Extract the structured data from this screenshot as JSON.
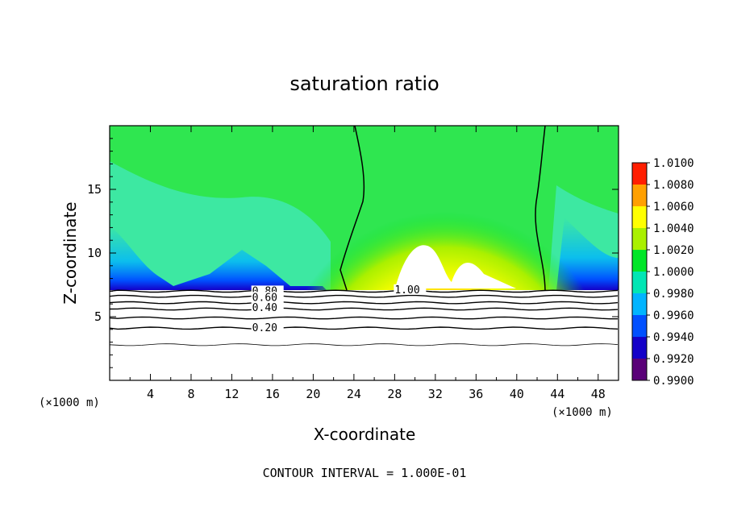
{
  "chart_data": {
    "type": "heatmap",
    "title": "saturation ratio",
    "xlabel": "X-coordinate",
    "ylabel": "Z-coordinate",
    "x_unit": "(×1000 m)",
    "x_unit_right": "(×1000 m)",
    "xlim": [
      0,
      50
    ],
    "ylim": [
      0,
      20
    ],
    "x_ticks": [
      4,
      8,
      12,
      16,
      20,
      24,
      28,
      32,
      36,
      40,
      44,
      48
    ],
    "y_ticks": [
      5,
      10,
      15
    ],
    "colorbar": {
      "min": 0.99,
      "max": 1.01,
      "levels": [
        "0.9900",
        "0.9920",
        "0.9940",
        "0.9960",
        "0.9980",
        "1.0000",
        "1.0020",
        "1.0040",
        "1.0060",
        "1.0080",
        "1.0100"
      ],
      "colors": [
        "#5a0078",
        "#1400c8",
        "#0050ff",
        "#00b4ff",
        "#00e6b4",
        "#00e628",
        "#aaf000",
        "#ffff00",
        "#ffa000",
        "#ff1e00",
        "#ff8c8c"
      ]
    },
    "contour_labels": [
      {
        "text": "0.80",
        "x": 14.0,
        "y": 7.0
      },
      {
        "text": "0.60",
        "x": 14.0,
        "y": 6.5
      },
      {
        "text": "0.40",
        "x": 14.0,
        "y": 5.7
      },
      {
        "text": "0.20",
        "x": 14.0,
        "y": 4.1
      },
      {
        "text": "1.00",
        "x": 28.0,
        "y": 7.1
      }
    ],
    "footer": "CONTOUR INTERVAL = 1.000E-01"
  }
}
